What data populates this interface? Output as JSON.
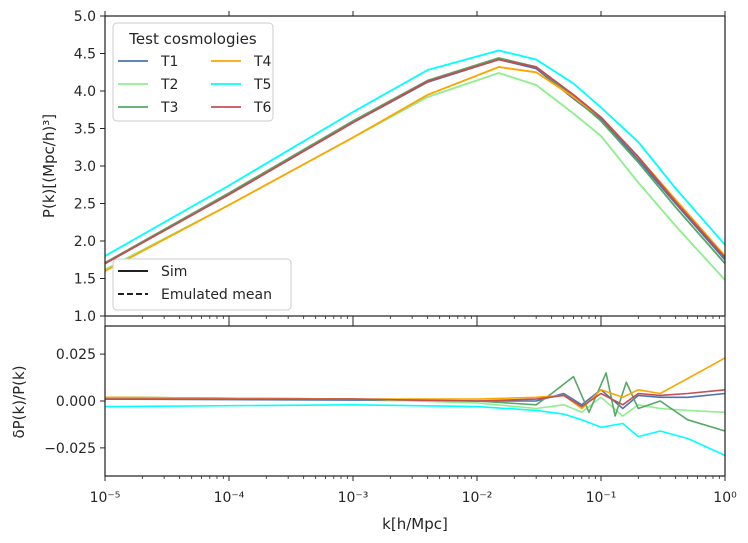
{
  "chart_data": [
    {
      "type": "line",
      "panel": "top",
      "ylabel": "P(k)[(Mpc/h)³]",
      "xscale": "log",
      "xlim": [
        1e-05,
        1
      ],
      "ylim": [
        1.0,
        5.0
      ],
      "yticks": [
        "1.0",
        "1.5",
        "2.0",
        "2.5",
        "3.0",
        "3.5",
        "4.0",
        "4.5",
        "5.0"
      ],
      "legend_title": "Test cosmologies",
      "legend_position": "top-left",
      "style_legend": [
        {
          "label": "Sim",
          "dash": "solid"
        },
        {
          "label": "Emulated mean",
          "dash": "dashed"
        }
      ],
      "style_legend_position": "bottom-left",
      "series": [
        {
          "name": "T1",
          "color": "#4c72b0",
          "x": [
            1e-05,
            0.0001,
            0.001,
            0.004,
            0.015,
            0.03,
            0.06,
            0.1,
            0.2,
            0.4,
            1.0
          ],
          "y": [
            1.7,
            2.62,
            3.58,
            4.12,
            4.42,
            4.3,
            3.9,
            3.62,
            3.08,
            2.5,
            1.75
          ]
        },
        {
          "name": "T2",
          "color": "#90ee90",
          "x": [
            1e-05,
            0.0001,
            0.001,
            0.004,
            0.015,
            0.03,
            0.06,
            0.1,
            0.2,
            0.4,
            1.0
          ],
          "y": [
            1.62,
            2.48,
            3.38,
            3.92,
            4.24,
            4.08,
            3.7,
            3.4,
            2.78,
            2.2,
            1.48
          ]
        },
        {
          "name": "T3",
          "color": "#55a868",
          "x": [
            1e-05,
            0.0001,
            0.001,
            0.004,
            0.015,
            0.03,
            0.06,
            0.1,
            0.2,
            0.4,
            1.0
          ],
          "y": [
            1.71,
            2.64,
            3.6,
            4.14,
            4.44,
            4.32,
            3.92,
            3.6,
            3.05,
            2.45,
            1.7
          ]
        },
        {
          "name": "T4",
          "color": "#ffa500",
          "x": [
            1e-05,
            0.0001,
            0.001,
            0.004,
            0.015,
            0.03,
            0.06,
            0.1,
            0.2,
            0.4,
            1.0
          ],
          "y": [
            1.6,
            2.48,
            3.38,
            3.95,
            4.32,
            4.25,
            3.92,
            3.65,
            3.12,
            2.55,
            1.8
          ]
        },
        {
          "name": "T5",
          "color": "#00ffff",
          "x": [
            1e-05,
            0.0001,
            0.001,
            0.004,
            0.015,
            0.03,
            0.06,
            0.1,
            0.2,
            0.4,
            1.0
          ],
          "y": [
            1.8,
            2.74,
            3.72,
            4.28,
            4.54,
            4.42,
            4.1,
            3.78,
            3.32,
            2.7,
            1.95
          ]
        },
        {
          "name": "T6",
          "color": "#c44e52",
          "x": [
            1e-05,
            0.0001,
            0.001,
            0.004,
            0.015,
            0.03,
            0.06,
            0.1,
            0.2,
            0.4,
            1.0
          ],
          "y": [
            1.7,
            2.62,
            3.58,
            4.13,
            4.42,
            4.32,
            3.95,
            3.65,
            3.12,
            2.52,
            1.78
          ]
        }
      ]
    },
    {
      "type": "line",
      "panel": "bottom",
      "xlabel": "k[h/Mpc]",
      "ylabel": "δP(k)/P(k)",
      "xscale": "log",
      "xlim": [
        1e-05,
        1
      ],
      "ylim": [
        -0.04,
        0.04
      ],
      "yticks": [
        "−0.025",
        "0.000",
        "0.025"
      ],
      "ytick_values": [
        -0.025,
        0.0,
        0.025
      ],
      "xticks": [
        "10⁻⁵",
        "10⁻⁴",
        "10⁻³",
        "10⁻²",
        "10⁻¹",
        "10⁰"
      ],
      "series": [
        {
          "name": "T1",
          "color": "#4c72b0",
          "x": [
            1e-05,
            0.001,
            0.01,
            0.03,
            0.05,
            0.07,
            0.1,
            0.15,
            0.2,
            0.3,
            0.5,
            1.0
          ],
          "y": [
            0.001,
            0.0005,
            0.0,
            0.0,
            0.004,
            -0.002,
            0.006,
            -0.004,
            0.003,
            0.002,
            0.002,
            0.004
          ]
        },
        {
          "name": "T2",
          "color": "#90ee90",
          "x": [
            1e-05,
            0.001,
            0.01,
            0.03,
            0.05,
            0.07,
            0.1,
            0.15,
            0.2,
            0.3,
            0.5,
            1.0
          ],
          "y": [
            0.002,
            0.001,
            -0.001,
            -0.004,
            -0.002,
            -0.006,
            0.002,
            -0.008,
            -0.002,
            -0.004,
            -0.005,
            -0.006
          ]
        },
        {
          "name": "T3",
          "color": "#55a868",
          "x": [
            1e-05,
            0.001,
            0.01,
            0.03,
            0.04,
            0.06,
            0.08,
            0.11,
            0.13,
            0.16,
            0.2,
            0.3,
            0.5,
            1.0
          ],
          "y": [
            0.002,
            0.001,
            0.0,
            -0.002,
            0.004,
            0.013,
            -0.006,
            0.015,
            -0.008,
            0.01,
            -0.004,
            0.0,
            -0.01,
            -0.016
          ]
        },
        {
          "name": "T4",
          "color": "#ffa500",
          "x": [
            1e-05,
            0.001,
            0.01,
            0.03,
            0.05,
            0.07,
            0.1,
            0.15,
            0.2,
            0.3,
            0.5,
            1.0
          ],
          "y": [
            0.002,
            0.001,
            0.001,
            0.002,
            0.003,
            -0.004,
            0.006,
            0.002,
            0.006,
            0.004,
            0.012,
            0.023
          ]
        },
        {
          "name": "T5",
          "color": "#00ffff",
          "x": [
            1e-05,
            0.001,
            0.01,
            0.03,
            0.05,
            0.07,
            0.1,
            0.15,
            0.2,
            0.3,
            0.5,
            1.0
          ],
          "y": [
            -0.003,
            -0.002,
            -0.003,
            -0.005,
            -0.007,
            -0.01,
            -0.014,
            -0.012,
            -0.019,
            -0.016,
            -0.02,
            -0.029
          ]
        },
        {
          "name": "T6",
          "color": "#c44e52",
          "x": [
            1e-05,
            0.001,
            0.01,
            0.03,
            0.05,
            0.07,
            0.1,
            0.15,
            0.2,
            0.3,
            0.5,
            1.0
          ],
          "y": [
            0.001,
            0.001,
            0.0,
            0.001,
            0.003,
            -0.003,
            0.004,
            -0.002,
            0.004,
            0.003,
            0.004,
            0.006
          ]
        }
      ]
    }
  ]
}
